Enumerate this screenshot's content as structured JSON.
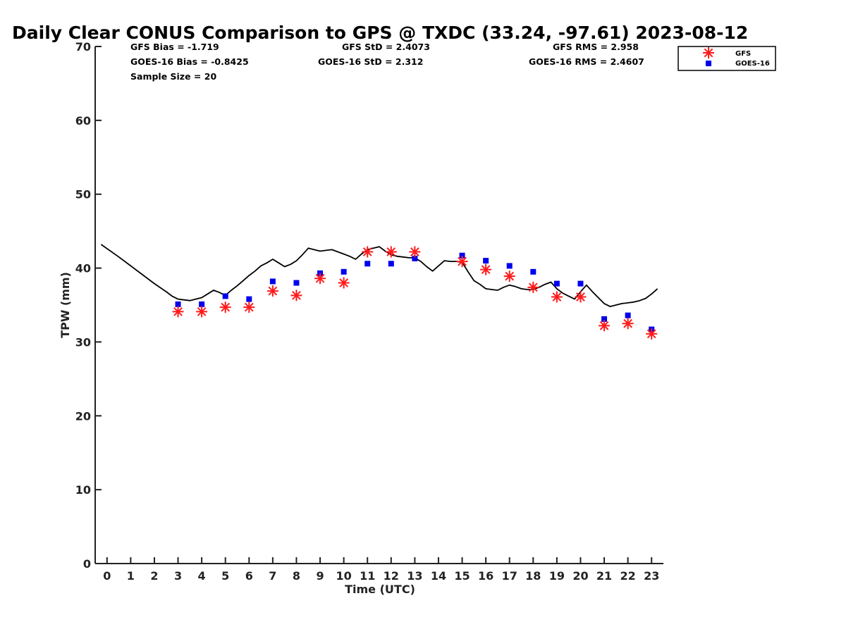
{
  "chart_data": {
    "type": "scatter",
    "title": "Daily Clear CONUS Comparison to GPS @ TXDC (33.24, -97.61) 2023-08-12",
    "xlabel": "Time (UTC)",
    "ylabel": "TPW (mm)",
    "xlim": [
      -0.5,
      23.5
    ],
    "ylim": [
      0,
      70
    ],
    "xticks": [
      0,
      1,
      2,
      3,
      4,
      5,
      6,
      7,
      8,
      9,
      10,
      11,
      12,
      13,
      14,
      15,
      16,
      17,
      18,
      19,
      20,
      21,
      22,
      23
    ],
    "yticks": [
      0,
      10,
      20,
      30,
      40,
      50,
      60,
      70
    ],
    "grid": false,
    "legend_position": "top-right, outside plot",
    "stats": {
      "gfs_bias": "GFS Bias = -1.719",
      "goes_bias": "GOES-16 Bias = -0.8425",
      "sample_size": "Sample Size = 20",
      "gfs_std": "GFS StD = 2.4073",
      "goes_std": "GOES-16 StD = 2.312",
      "gfs_rms": "GFS RMS = 2.958",
      "goes_rms": "GOES-16 RMS = 2.4607"
    },
    "gps_line": {
      "x": [
        -0.25,
        0.5,
        1.0,
        1.5,
        2.0,
        2.5,
        2.75,
        3.0,
        3.25,
        3.5,
        3.75,
        4.0,
        4.25,
        4.5,
        4.75,
        5.0,
        5.25,
        5.5,
        5.75,
        6.0,
        6.25,
        6.5,
        6.75,
        7.0,
        7.25,
        7.5,
        7.75,
        8.0,
        8.25,
        8.5,
        8.75,
        9.0,
        9.25,
        9.5,
        9.75,
        10.0,
        10.25,
        10.5,
        10.75,
        11.0,
        11.25,
        11.5,
        11.75,
        12.0,
        12.25,
        12.5,
        12.75,
        13.0,
        13.25,
        13.5,
        13.75,
        14.0,
        14.25,
        14.5,
        14.75,
        15.0,
        15.25,
        15.5,
        15.75,
        16.0,
        16.25,
        16.5,
        16.75,
        17.0,
        17.25,
        17.5,
        17.75,
        18.0,
        18.25,
        18.5,
        18.75,
        19.0,
        19.25,
        19.5,
        19.75,
        20.0,
        20.25,
        20.5,
        20.75,
        21.0,
        21.25,
        21.5,
        21.75,
        22.0,
        22.25,
        22.5,
        22.75,
        23.0,
        23.25
      ],
      "y": [
        43.2,
        41.5,
        40.3,
        39.1,
        37.9,
        36.8,
        36.2,
        35.8,
        35.7,
        35.6,
        35.8,
        36.0,
        36.5,
        37.0,
        36.7,
        36.3,
        37.0,
        37.6,
        38.3,
        39.0,
        39.6,
        40.3,
        40.7,
        41.2,
        40.7,
        40.2,
        40.5,
        41.0,
        41.8,
        42.7,
        42.5,
        42.3,
        42.4,
        42.5,
        42.2,
        41.9,
        41.6,
        41.2,
        41.9,
        42.5,
        42.7,
        42.9,
        42.3,
        41.8,
        41.6,
        41.5,
        41.4,
        41.4,
        40.9,
        40.2,
        39.6,
        40.3,
        41.0,
        40.9,
        40.9,
        40.8,
        39.5,
        38.3,
        37.8,
        37.2,
        37.1,
        37.0,
        37.4,
        37.7,
        37.5,
        37.2,
        37.1,
        37.1,
        37.4,
        37.8,
        38.1,
        37.2,
        36.6,
        36.2,
        35.8,
        36.8,
        37.7,
        36.8,
        36.0,
        35.2,
        34.8,
        35.0,
        35.2,
        35.3,
        35.4,
        35.6,
        35.9,
        36.5,
        37.2
      ]
    },
    "series": [
      {
        "name": "GFS",
        "x": [
          3,
          4,
          5,
          6,
          7,
          8,
          9,
          10,
          11,
          12,
          13,
          15,
          16,
          17,
          18,
          19,
          20,
          21,
          22,
          23
        ],
        "values": [
          34.1,
          34.1,
          34.7,
          34.7,
          36.9,
          36.3,
          38.6,
          38.0,
          42.2,
          42.2,
          42.2,
          40.9,
          39.8,
          38.9,
          37.4,
          36.1,
          36.1,
          32.2,
          32.5,
          31.1
        ],
        "color": "#ff1a1a",
        "marker": "asterisk"
      },
      {
        "name": "GOES-16",
        "x": [
          3,
          4,
          5,
          6,
          7,
          8,
          9,
          10,
          11,
          12,
          13,
          15,
          16,
          17,
          18,
          19,
          20,
          21,
          22,
          23
        ],
        "values": [
          35.1,
          35.1,
          36.2,
          35.8,
          38.2,
          38.0,
          39.3,
          39.5,
          40.6,
          40.6,
          41.3,
          41.7,
          41.0,
          40.3,
          39.5,
          37.9,
          37.9,
          33.1,
          33.6,
          31.7
        ],
        "color": "#0000ee",
        "marker": "square"
      }
    ]
  }
}
